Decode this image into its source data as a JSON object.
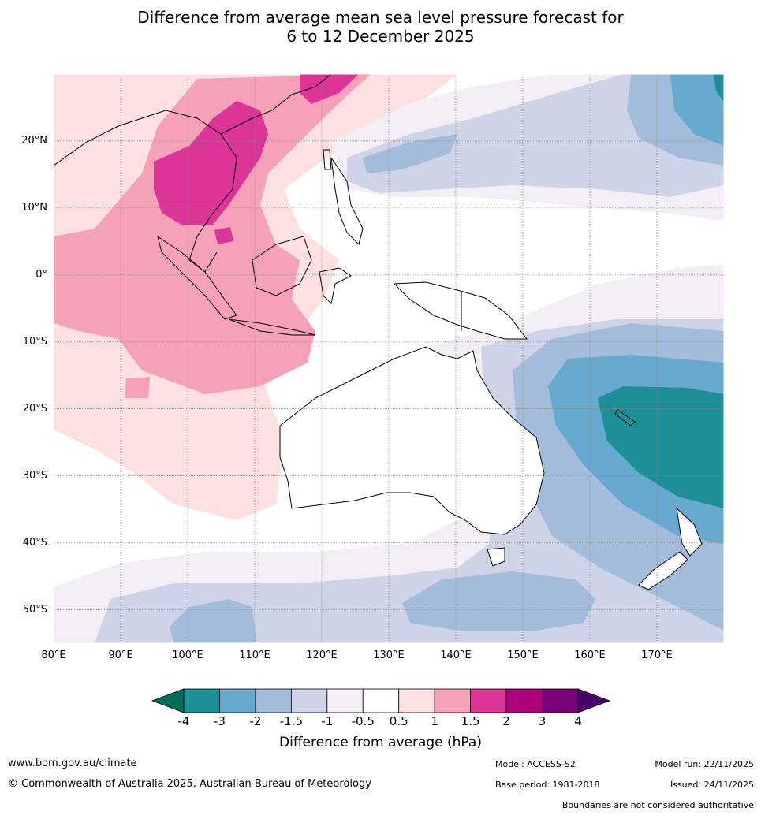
{
  "title": {
    "line1": "Difference from average mean sea level pressure forecast for",
    "line2": "6 to 12 December 2025"
  },
  "axes": {
    "lat_labels": [
      "20°N",
      "10°N",
      "0°",
      "10°S",
      "20°S",
      "30°S",
      "40°S",
      "50°S"
    ],
    "lon_labels": [
      "80°E",
      "90°E",
      "100°E",
      "110°E",
      "120°E",
      "130°E",
      "140°E",
      "150°E",
      "160°E",
      "170°E"
    ],
    "lat_range": [
      -55,
      30
    ],
    "lon_range": [
      80,
      180
    ]
  },
  "colorbar": {
    "ticks": [
      "-4",
      "-3",
      "-2",
      "-1.5",
      "-1",
      "-0.5",
      "0.5",
      "1",
      "1.5",
      "2",
      "3",
      "4"
    ],
    "colors": [
      "#1e8f96",
      "#67a9cf",
      "#a4bcdc",
      "#cfd3e8",
      "#f3eef6",
      "#ffffff",
      "#fde0e0",
      "#f7a1b9",
      "#dd3497",
      "#ae017e",
      "#7a0177"
    ],
    "under_color": "#016c59",
    "over_color": "#49006a",
    "title": "Difference from average (hPa)"
  },
  "footer": {
    "website": "www.bom.gov.au/climate",
    "copyright": "© Commonwealth of Australia 2025, Australian Bureau of Meteorology",
    "model": "Model: ACCESS-S2",
    "base_period": "Base period: 1981-2018",
    "model_run": "Model run: 22/11/2025",
    "issued": "Issued: 24/11/2025",
    "disclaimer": "Boundaries are not considered authoritative"
  }
}
